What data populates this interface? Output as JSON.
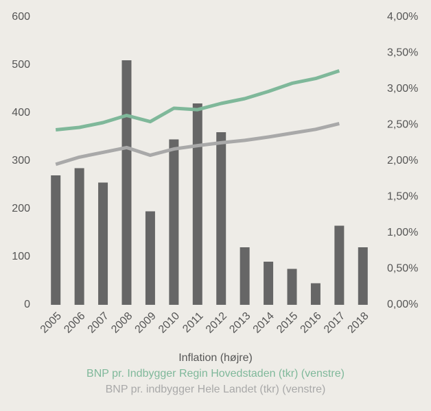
{
  "chart_data": {
    "type": "bar-line",
    "categories": [
      "2005",
      "2006",
      "2007",
      "2008",
      "2009",
      "2010",
      "2011",
      "2012",
      "2013",
      "2014",
      "2015",
      "2016",
      "2017",
      "2018"
    ],
    "series": [
      {
        "name": "Inflation (højre)",
        "type": "bar",
        "axis": "y2",
        "color": "#666666",
        "values": [
          1.8,
          1.9,
          1.7,
          3.4,
          1.3,
          2.3,
          2.8,
          2.4,
          0.8,
          0.6,
          0.5,
          0.3,
          1.1,
          0.8
        ]
      },
      {
        "name": "BNP pr. Indbygger Regin Hovedstaden (tkr) (venstre)",
        "type": "line",
        "color": "#7fb89a",
        "values": [
          365,
          370,
          380,
          395,
          382,
          410,
          407,
          420,
          430,
          445,
          462,
          472,
          488,
          null
        ]
      },
      {
        "name": "BNP pr. indbygger Hele Landet (tkr) (venstre)",
        "type": "line",
        "color": "#a9a9a9",
        "values": [
          293,
          308,
          318,
          328,
          312,
          325,
          332,
          338,
          343,
          350,
          358,
          366,
          378,
          null
        ]
      }
    ],
    "ylim": [
      0,
      600
    ],
    "yticks": [
      0,
      100,
      200,
      300,
      400,
      500,
      600
    ],
    "y2lim": [
      0,
      4
    ],
    "y2ticks": [
      {
        "value": 0,
        "label": "0,00%"
      },
      {
        "value": 0.5,
        "label": "0,50%"
      },
      {
        "value": 1,
        "label": "1,00%"
      },
      {
        "value": 1.5,
        "label": "1,50%"
      },
      {
        "value": 2,
        "label": "2,00%"
      },
      {
        "value": 2.5,
        "label": "2,50%"
      },
      {
        "value": 3,
        "label": "3,00%"
      },
      {
        "value": 3.5,
        "label": "3,50%"
      },
      {
        "value": 4,
        "label": "4,00%"
      }
    ]
  }
}
